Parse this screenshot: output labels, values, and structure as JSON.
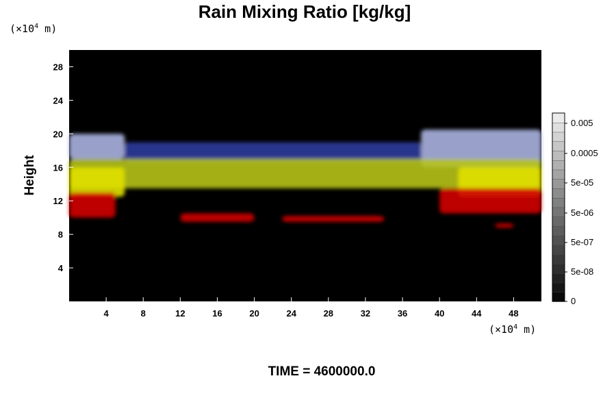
{
  "chart_data": {
    "type": "heatmap",
    "title": "Rain Mixing Ratio [kg/kg]",
    "ylabel": "Height",
    "xlabel": "",
    "x_unit": "(×10⁴ m)",
    "y_unit": "(×10⁴ m)",
    "xlim": [
      0,
      51
    ],
    "ylim": [
      0,
      30
    ],
    "x_ticks": [
      4,
      8,
      12,
      16,
      20,
      24,
      28,
      32,
      36,
      40,
      44,
      48
    ],
    "y_ticks": [
      4,
      8,
      12,
      16,
      20,
      24,
      28
    ],
    "colorbar": {
      "labels": [
        "0.005",
        "0.0005",
        "5e-05",
        "5e-06",
        "5e-07",
        "5e-08",
        "0"
      ],
      "scale": "log"
    },
    "background": "#000000",
    "layers": [
      {
        "color": "#aab3e0",
        "regions": [
          [
            0,
            6,
            17,
            20
          ],
          [
            38,
            51,
            16,
            20.5
          ]
        ]
      },
      {
        "color": "#2b3a9c",
        "regions": [
          [
            6,
            38,
            16.5,
            19
          ]
        ]
      },
      {
        "color": "#b5c21a",
        "regions": [
          [
            0,
            51,
            13.5,
            17
          ]
        ]
      },
      {
        "color": "#e0e000",
        "regions": [
          [
            0,
            6,
            12.5,
            16
          ],
          [
            42,
            51,
            12.5,
            16
          ]
        ]
      },
      {
        "color": "#d10000",
        "regions": [
          [
            0,
            5,
            10,
            13
          ],
          [
            40,
            51,
            10.5,
            13.5
          ],
          [
            12,
            20,
            9.5,
            10.5
          ],
          [
            23,
            34,
            9.5,
            10.2
          ],
          [
            46,
            48,
            8.8,
            9.3
          ]
        ]
      }
    ]
  },
  "footer": {
    "time_label": "TIME = 4600000.0"
  },
  "colors": {
    "plot_bg": "#000000",
    "frame": "#000000"
  }
}
